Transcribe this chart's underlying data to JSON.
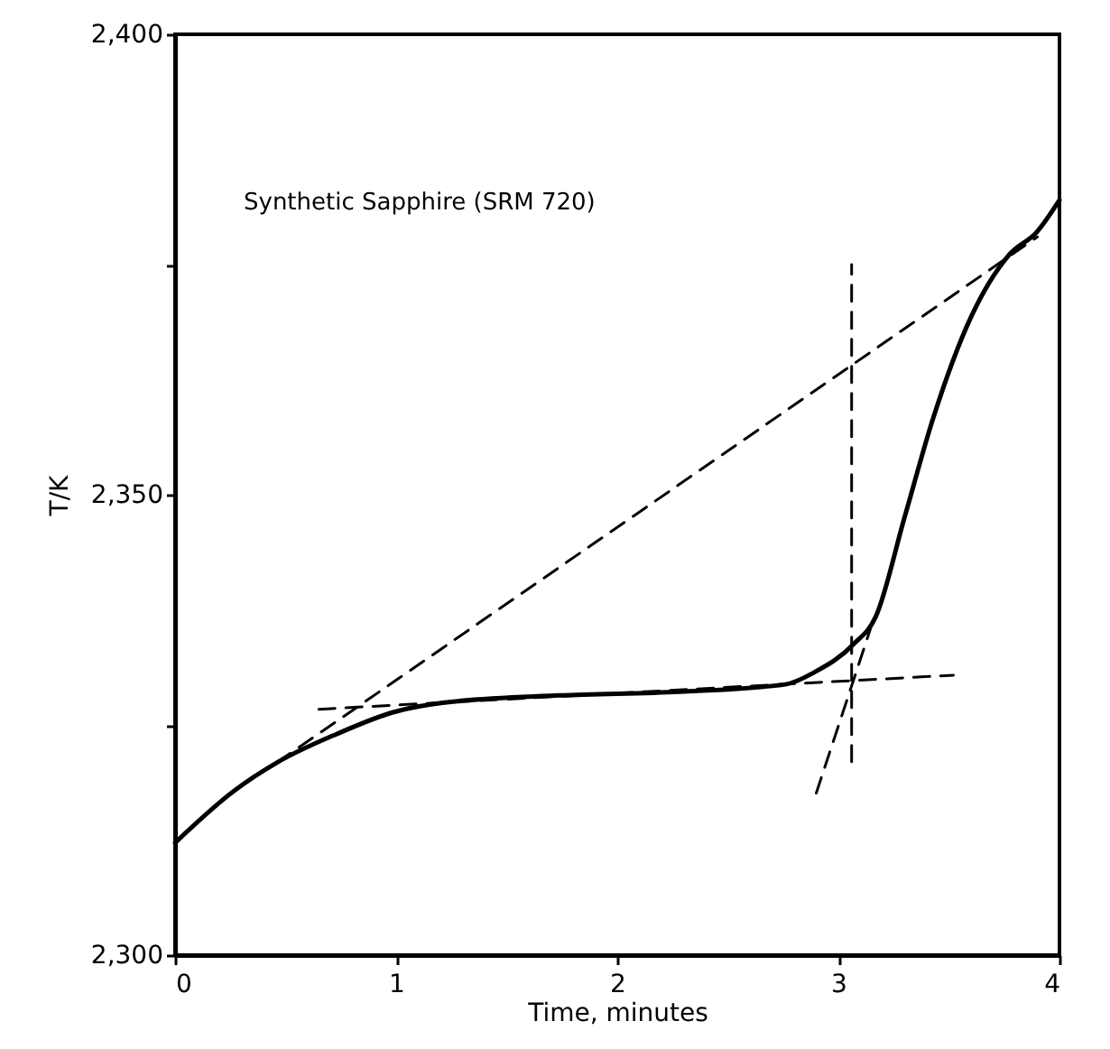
{
  "chart_data": {
    "type": "line",
    "xlabel": "Time, minutes",
    "ylabel": "T/K",
    "annotations": [
      "Synthetic Sapphire (SRM 720)"
    ],
    "xlim": [
      0,
      4
    ],
    "xticks": [
      0,
      1,
      2,
      3,
      4
    ],
    "ylim": [
      2300,
      2400
    ],
    "yticks": [
      {
        "value": 2300,
        "label": "2,300"
      },
      {
        "value": 2325,
        "label": null
      },
      {
        "value": 2350,
        "label": "2,350"
      },
      {
        "value": 2375,
        "label": null
      },
      {
        "value": 2400,
        "label": "2,400"
      }
    ],
    "grid": false,
    "series": [
      {
        "color": "#000000",
        "line_style": "solid",
        "x": [
          0,
          0.27,
          0.46,
          0.73,
          0.99,
          1.21,
          1.74,
          2.28,
          2.76,
          2.89,
          3.07,
          3.17,
          3.3,
          3.43,
          3.6,
          3.77,
          3.9,
          4
        ],
        "values": [
          2312.2,
          2317.9,
          2320.9,
          2324,
          2326.4,
          2327.4,
          2328.2,
          2328.6,
          2329.4,
          2330.7,
          2333.8,
          2336.8,
          2347.6,
          2358.4,
          2369.3,
          2376,
          2378.6,
          2382
        ]
      },
      {
        "color": "#000000",
        "line_style": "dashed",
        "x": [
          0.46,
          3.9
        ],
        "values": [
          2320.9,
          2378
        ]
      },
      {
        "color": "#000000",
        "line_style": "dashed",
        "x": [
          0.65,
          3.52
        ],
        "values": [
          2326.7,
          2330.4
        ]
      },
      {
        "color": "#000000",
        "line_style": "dashed",
        "x": [
          2.9,
          3.15
        ],
        "values": [
          2317.6,
          2335.8
        ]
      },
      {
        "color": "#000000",
        "line_style": "dashed",
        "x": [
          3.06,
          3.06
        ],
        "values": [
          2321,
          2375
        ]
      }
    ]
  }
}
